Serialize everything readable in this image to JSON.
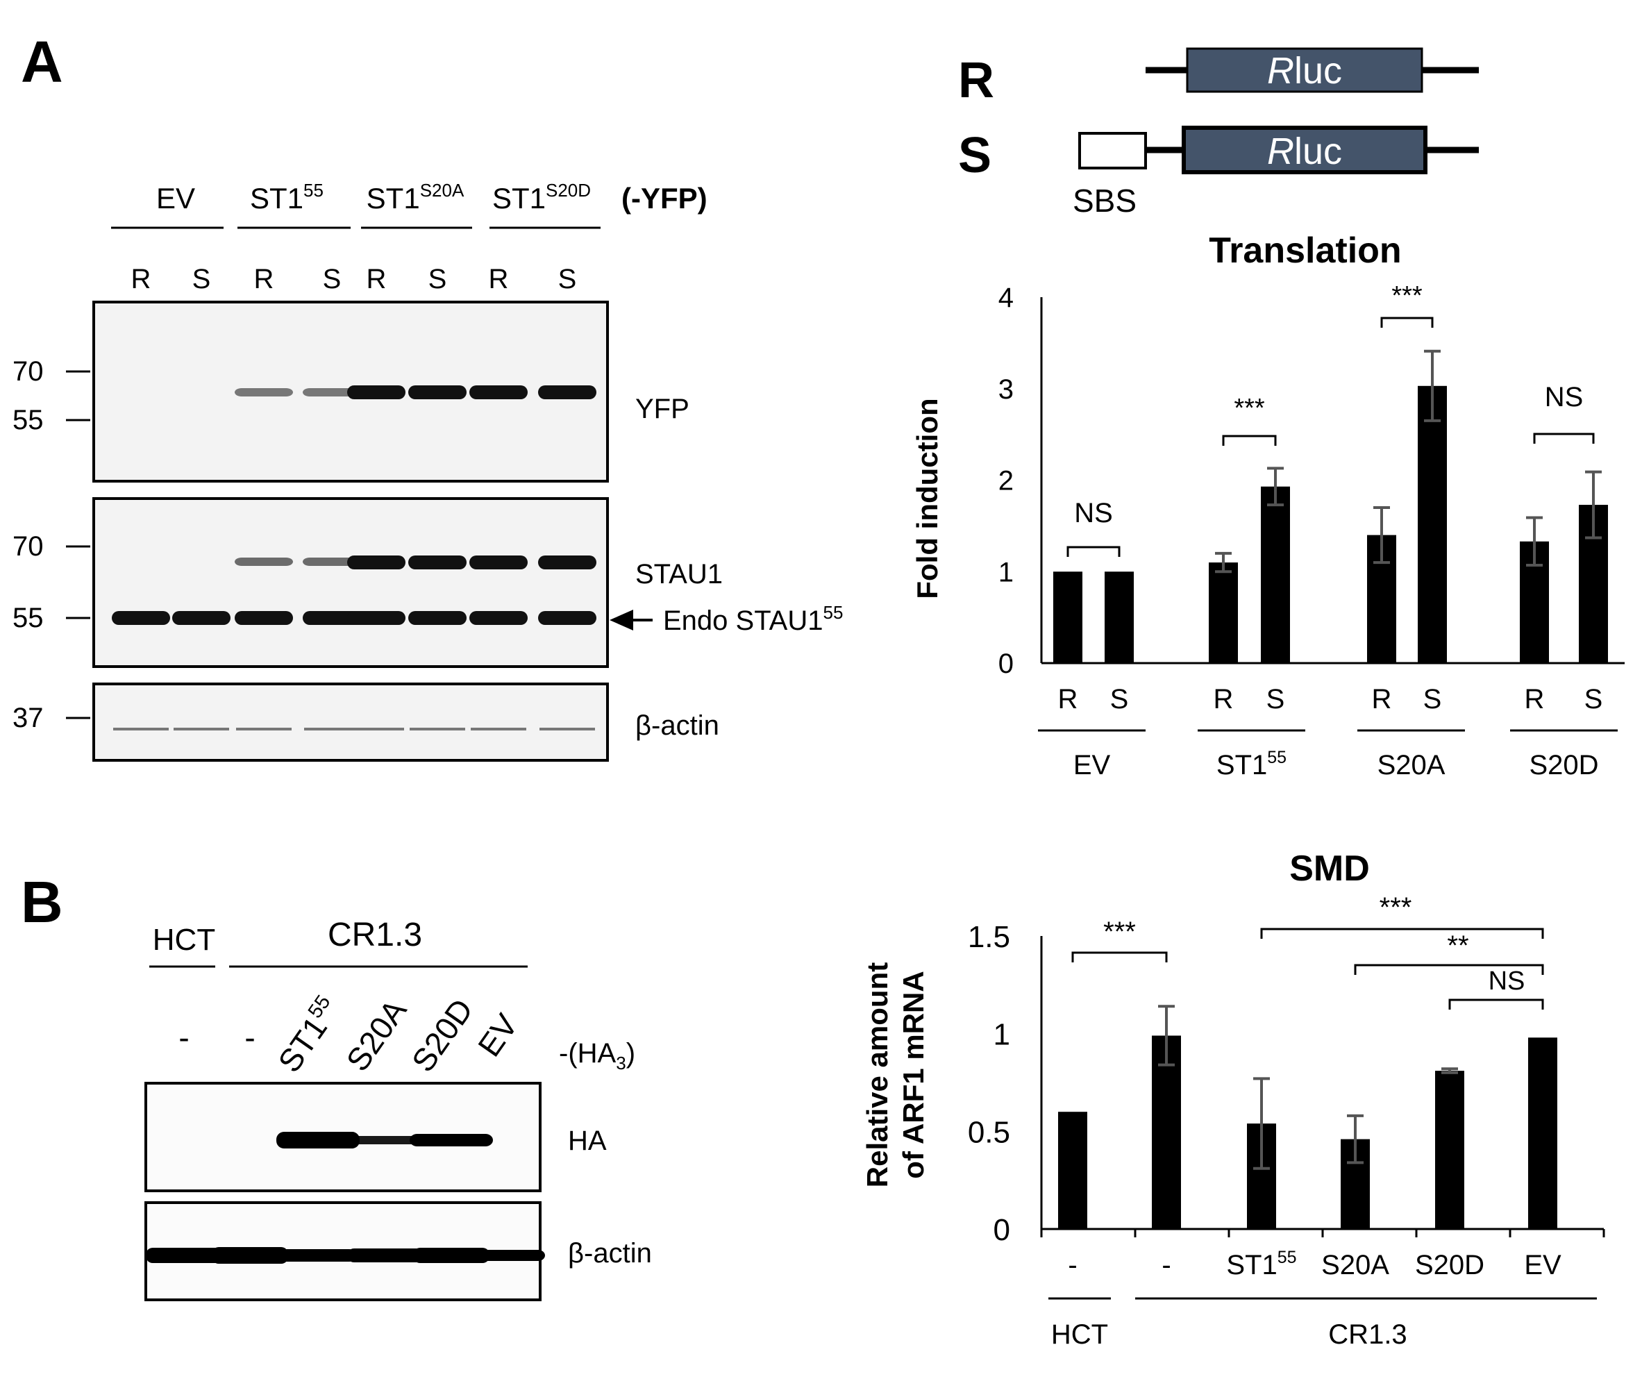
{
  "panel_a": {
    "label": "A",
    "groups": [
      {
        "name": "EV",
        "sup": ""
      },
      {
        "name": "ST1",
        "sup": "55"
      },
      {
        "name": "ST1",
        "sup": "S20A"
      },
      {
        "name": "ST1",
        "sup": "S20D"
      }
    ],
    "tag": "(-YFP)",
    "lanes": [
      "R",
      "S",
      "R",
      "S",
      "R",
      "S",
      "R",
      "S"
    ],
    "markers_yfp": [
      "70",
      "55"
    ],
    "markers_stau": [
      "70",
      "55"
    ],
    "marker_actin": "37",
    "blot_labels": {
      "yfp": "YFP",
      "stau1": "STAU1",
      "endo": "Endo STAU1",
      "endo_sup": "55",
      "actin": "β-actin"
    }
  },
  "panel_b": {
    "label": "B",
    "hct": "HCT",
    "cr": "CR1.3",
    "lanes": [
      "-",
      "-",
      "ST1",
      "S20A",
      "S20D",
      "EV"
    ],
    "lane_sup": "55",
    "tag": "-(HA",
    "tag_sub": "3",
    "tag_end": ")",
    "blot_labels": {
      "ha": "HA",
      "actin": "β-actin"
    }
  },
  "constructs": {
    "r_label": "R",
    "s_label": "S",
    "rluc_italic": "R",
    "rluc_rest": "luc",
    "sbs": "SBS",
    "box_color": "#44546a"
  },
  "chart_data": [
    {
      "type": "bar",
      "title": "Translation",
      "ylabel": "Fold induction",
      "ylim": [
        0,
        4
      ],
      "yticks": [
        "0",
        "1",
        "2",
        "3",
        "4"
      ],
      "groups": [
        {
          "name": "EV",
          "sup": ""
        },
        {
          "name": "ST1",
          "sup": "55"
        },
        {
          "name": "S20A",
          "sup": ""
        },
        {
          "name": "S20D",
          "sup": ""
        }
      ],
      "categories": [
        "R",
        "S",
        "R",
        "S",
        "R",
        "S",
        "R",
        "S"
      ],
      "values": [
        1.0,
        1.0,
        1.1,
        1.93,
        1.4,
        3.03,
        1.33,
        1.73
      ],
      "errors": [
        0.0,
        0.0,
        0.1,
        0.2,
        0.3,
        0.38,
        0.26,
        0.36
      ],
      "significance": [
        "NS",
        "***",
        "***",
        "NS"
      ],
      "bar_color": "#000000"
    },
    {
      "type": "bar",
      "title": "SMD",
      "ylabel_lines": [
        "Relative amount",
        "of ARF1 mRNA"
      ],
      "ylim": [
        0,
        1.5
      ],
      "yticks": [
        "0",
        "0.5",
        "1",
        "1.5"
      ],
      "categories": [
        {
          "name": "-",
          "sup": ""
        },
        {
          "name": "-",
          "sup": ""
        },
        {
          "name": "ST1",
          "sup": "55"
        },
        {
          "name": "S20A",
          "sup": ""
        },
        {
          "name": "S20D",
          "sup": ""
        },
        {
          "name": "EV",
          "sup": ""
        }
      ],
      "values": [
        0.6,
        0.99,
        0.54,
        0.46,
        0.81,
        0.98
      ],
      "errors": [
        0.0,
        0.15,
        0.23,
        0.12,
        0.01,
        0.0
      ],
      "cell_groups": [
        "HCT",
        "CR1.3"
      ],
      "significance": [
        "***",
        "***",
        "**",
        "NS"
      ],
      "bar_color": "#000000"
    }
  ]
}
